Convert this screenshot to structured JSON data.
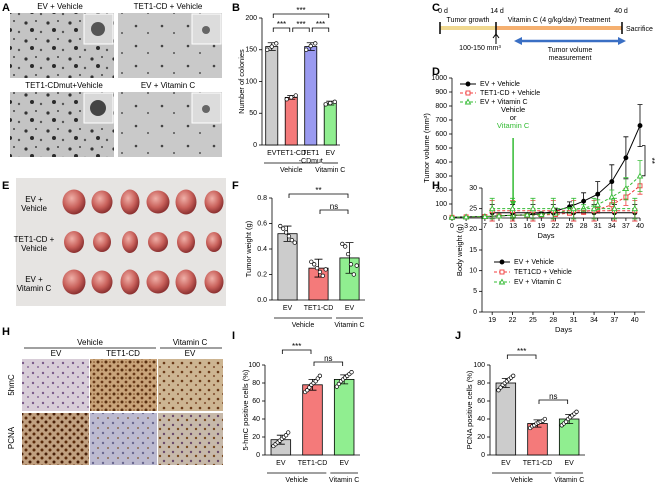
{
  "panel_labels": [
    "A",
    "B",
    "C",
    "D",
    "E",
    "F",
    "H",
    "H",
    "I",
    "J"
  ],
  "panel_a": {
    "images": [
      "EV + Vehicle",
      "TET1-CD + Vehicle",
      "TET1-CDmut+Vehicle",
      "EV + Vitamin C"
    ]
  },
  "panel_c": {
    "day_labels": [
      "0 d",
      "14 d",
      "40 d"
    ],
    "phases": [
      "Tumor growth",
      "Vitamin C (4 g/kg/day) Treatment"
    ],
    "end": "Sacrifice",
    "start_size": "100-150 mm³",
    "measurement": "Tumor volume\nmeasurement"
  },
  "panel_e": {
    "rows": [
      "EV +\nVehicle",
      "TET1-CD +\nVehicle",
      "EV +\nVitamin C"
    ]
  },
  "panel_h_ihc": {
    "groups": [
      "Vehicle",
      "Vitamin C"
    ],
    "columns": [
      "EV",
      "TET1-CD",
      "EV"
    ],
    "rows": [
      "5hmC",
      "PCNA"
    ]
  },
  "chart_data": [
    {
      "type": "bar",
      "y_label": "Number of colonies",
      "categories": [
        "EV",
        "TET1-CD",
        "TET1\n-CDmut",
        "EV"
      ],
      "values": [
        155,
        75,
        155,
        66
      ],
      "errors": [
        6,
        3,
        6,
        3
      ],
      "points": [
        [
          150,
          155,
          160
        ],
        [
          72,
          75,
          78
        ],
        [
          150,
          156,
          160
        ],
        [
          64,
          66,
          68
        ]
      ],
      "colors": [
        "#cccccc",
        "#f47a7a",
        "#9a9af0",
        "#90ee90"
      ],
      "group_labels": [
        "Vehicle",
        "Vitamin C"
      ],
      "significance": [
        "***",
        "***",
        "***",
        "***"
      ],
      "ylim": [
        0,
        200
      ],
      "yticks": [
        0,
        50,
        100,
        150,
        200
      ]
    },
    {
      "type": "line",
      "y_label": "Tumor volume (mm³)",
      "x_label": "Days",
      "x": [
        0,
        3,
        7,
        10,
        13,
        16,
        19,
        22,
        25,
        28,
        31,
        34,
        37,
        40
      ],
      "series": [
        {
          "name": "EV + Vehicle",
          "color": "#000000",
          "marker": "circle",
          "filled": true,
          "dashed": false,
          "values": [
            5,
            8,
            10,
            15,
            20,
            22,
            30,
            50,
            80,
            120,
            170,
            260,
            430,
            660
          ],
          "errors": [
            2,
            3,
            3,
            5,
            5,
            8,
            12,
            20,
            35,
            60,
            90,
            120,
            150,
            150
          ]
        },
        {
          "name": "TET1-CD + Vehicle",
          "color": "#f03c3c",
          "marker": "square",
          "filled": false,
          "dashed": true,
          "values": [
            5,
            8,
            10,
            15,
            20,
            20,
            22,
            25,
            35,
            45,
            60,
            95,
            150,
            230
          ],
          "errors": [
            2,
            3,
            3,
            5,
            5,
            6,
            8,
            10,
            15,
            20,
            25,
            40,
            60,
            60
          ]
        },
        {
          "name": "EV + Vitamin C",
          "color": "#33bb33",
          "marker": "triangle",
          "filled": false,
          "dashed": true,
          "values": [
            5,
            8,
            10,
            15,
            20,
            22,
            25,
            35,
            55,
            70,
            95,
            150,
            210,
            300
          ],
          "errors": [
            2,
            3,
            3,
            5,
            5,
            6,
            8,
            12,
            20,
            25,
            35,
            50,
            80,
            110
          ]
        }
      ],
      "treatment_labels": [
        "Vehicle",
        "or",
        "Vitamin C"
      ],
      "treatment_colors": [
        "#000000",
        "#000000",
        "#33bb33"
      ],
      "treatment_day": 13,
      "significance": [
        "**"
      ],
      "xlim": [
        0,
        40
      ],
      "xticks": [
        0,
        3,
        7,
        10,
        13,
        16,
        19,
        22,
        25,
        28,
        31,
        34,
        37,
        40
      ],
      "ylim": [
        0,
        1000
      ],
      "yticks": [
        0,
        100,
        200,
        300,
        400,
        500,
        600,
        700,
        800,
        900,
        1000
      ]
    },
    {
      "type": "bar",
      "y_label": "Tumor weight (g)",
      "categories": [
        "EV",
        "TET1-CD",
        "EV"
      ],
      "values": [
        0.52,
        0.25,
        0.33
      ],
      "errors": [
        0.06,
        0.07,
        0.12
      ],
      "points": [
        [
          0.58,
          0.56,
          0.53,
          0.5,
          0.47,
          0.45
        ],
        [
          0.3,
          0.28,
          0.25,
          0.22,
          0.19,
          0.24
        ],
        [
          0.44,
          0.42,
          0.36,
          0.28,
          0.2,
          0.27
        ]
      ],
      "colors": [
        "#cccccc",
        "#f47a7a",
        "#90ee90"
      ],
      "group_labels": [
        "Vehicle",
        "Vitamin C"
      ],
      "significance": [
        "**",
        "ns"
      ],
      "ylim": [
        0,
        0.8
      ],
      "yticks": [
        {
          "value": 0,
          "label": "0.0"
        },
        0.2,
        0.4,
        0.6,
        0.8
      ]
    },
    {
      "type": "line",
      "y_label": "Body weight (g)",
      "x_label": "Days",
      "x": [
        19,
        22,
        25,
        28,
        31,
        34,
        37,
        40
      ],
      "series": [
        {
          "name": "EV + Vehicle",
          "color": "#000000",
          "marker": "circle",
          "filled": true,
          "dashed": false,
          "values": [
            24,
            24,
            24,
            24,
            24,
            24,
            24,
            24
          ],
          "errors": [
            2,
            2,
            2,
            2,
            2,
            2,
            2,
            2
          ]
        },
        {
          "name": "TET1CD + Vehicle",
          "color": "#f03c3c",
          "marker": "square",
          "filled": false,
          "dashed": true,
          "values": [
            24.5,
            24.5,
            24.5,
            24.5,
            24.5,
            24.5,
            24.5,
            24.5
          ],
          "errors": [
            2.5,
            2.5,
            2.5,
            2.5,
            2.5,
            2.5,
            2.5,
            2.5
          ]
        },
        {
          "name": "EV + Vitamin C",
          "color": "#33bb33",
          "marker": "triangle",
          "filled": false,
          "dashed": true,
          "values": [
            25,
            25,
            25,
            25,
            25,
            25,
            25,
            25
          ],
          "errors": [
            2.5,
            2.5,
            2.5,
            2.5,
            2.5,
            2.5,
            2.5,
            2.5
          ]
        }
      ],
      "xlim": [
        17.5,
        41.5
      ],
      "xticks": [
        19,
        22,
        25,
        28,
        31,
        34,
        37,
        40
      ],
      "ylim": [
        0,
        30
      ],
      "yticks": [
        0,
        5,
        10,
        15,
        20,
        25,
        30
      ]
    },
    {
      "type": "bar",
      "y_label": "5-hmC positive cells (%)",
      "categories": [
        "EV",
        "TET1-CD",
        "EV"
      ],
      "values": [
        17,
        78,
        84
      ],
      "errors": [
        5,
        6,
        5
      ],
      "points": [
        [
          10,
          12,
          14,
          16,
          18,
          20,
          22,
          25
        ],
        [
          70,
          72,
          75,
          78,
          80,
          82,
          85,
          88
        ],
        [
          76,
          79,
          82,
          84,
          86,
          88,
          90,
          92
        ]
      ],
      "colors": [
        "#cccccc",
        "#f47a7a",
        "#90ee90"
      ],
      "group_labels": [
        "Vehicle",
        "Vitamin C"
      ],
      "significance": [
        "***",
        "ns"
      ],
      "ylim": [
        0,
        100
      ],
      "yticks": [
        0,
        20,
        40,
        60,
        80,
        100
      ]
    },
    {
      "type": "bar",
      "y_label": "PCNA positive cells (%)",
      "categories": [
        "EV",
        "TET1-CD",
        "EV"
      ],
      "values": [
        80,
        35,
        40
      ],
      "errors": [
        5,
        4,
        5
      ],
      "points": [
        [
          72,
          75,
          78,
          80,
          82,
          84,
          86,
          88
        ],
        [
          30,
          32,
          33,
          35,
          36,
          37,
          38,
          40
        ],
        [
          33,
          35,
          37,
          40,
          42,
          44,
          46,
          48
        ]
      ],
      "colors": [
        "#cccccc",
        "#f47a7a",
        "#90ee90"
      ],
      "group_labels": [
        "Vehicle",
        "Vitamin C"
      ],
      "significance": [
        "***",
        "ns"
      ],
      "ylim": [
        0,
        100
      ],
      "yticks": [
        0,
        20,
        40,
        60,
        80,
        100
      ]
    }
  ]
}
